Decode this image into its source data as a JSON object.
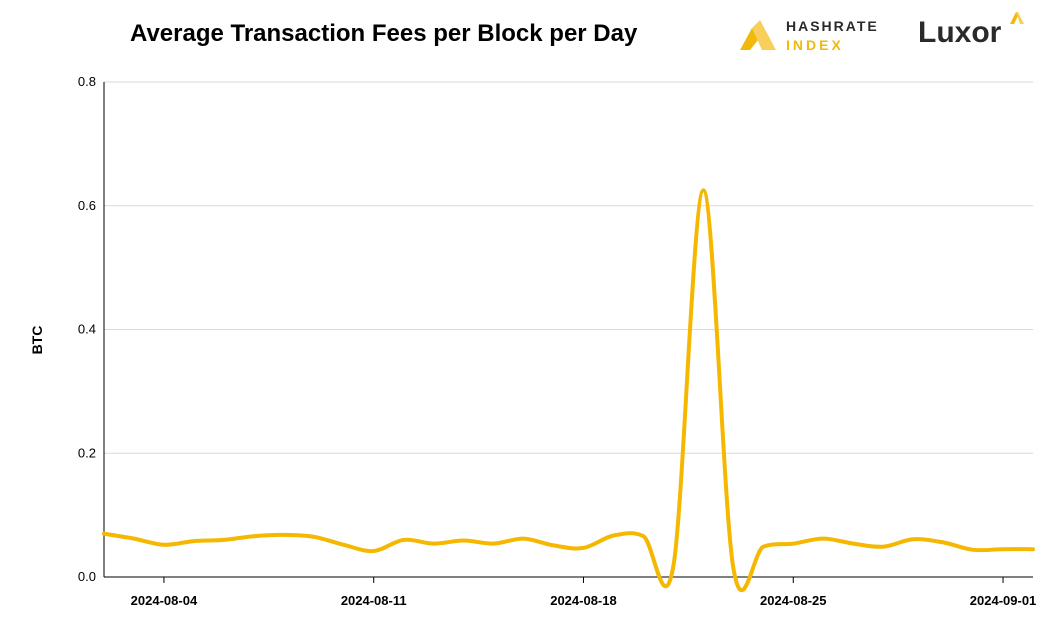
{
  "header": {
    "title": "Average Transaction Fees per Block per Day"
  },
  "logos": {
    "hashrate_line1": "HASHRATE",
    "hashrate_line2": "INDEX",
    "luxor": "Luxor"
  },
  "colors": {
    "line": "#f5b700",
    "grid": "#d9d9d9",
    "axis": "#000000",
    "brand_gold": "#f0b90b"
  },
  "chart_data": {
    "type": "line",
    "title": "Average Transaction Fees per Block per Day",
    "xlabel": "",
    "ylabel": "BTC",
    "ylim": [
      0,
      0.8
    ],
    "yticks": [
      "0.0",
      "0.2",
      "0.4",
      "0.6",
      "0.8"
    ],
    "xticks": [
      "2024-08-04",
      "2024-08-11",
      "2024-08-18",
      "2024-08-25",
      "2024-09-01"
    ],
    "xlim": [
      "2024-08-02",
      "2024-09-02"
    ],
    "grid": true,
    "series": [
      {
        "x": [
          "2024-08-02",
          "2024-08-03",
          "2024-08-04",
          "2024-08-05",
          "2024-08-06",
          "2024-08-07",
          "2024-08-08",
          "2024-08-09",
          "2024-08-10",
          "2024-08-11",
          "2024-08-12",
          "2024-08-13",
          "2024-08-14",
          "2024-08-15",
          "2024-08-16",
          "2024-08-17",
          "2024-08-18",
          "2024-08-19",
          "2024-08-20",
          "2024-08-21",
          "2024-08-22",
          "2024-08-23",
          "2024-08-24",
          "2024-08-25",
          "2024-08-26",
          "2024-08-27",
          "2024-08-28",
          "2024-08-29",
          "2024-08-30",
          "2024-08-31",
          "2024-09-01",
          "2024-09-02"
        ],
        "values": [
          0.07,
          0.062,
          0.052,
          0.058,
          0.06,
          0.066,
          0.068,
          0.065,
          0.052,
          0.042,
          0.06,
          0.054,
          0.059,
          0.054,
          0.062,
          0.051,
          0.047,
          0.067,
          0.066,
          0.018,
          0.625,
          0.015,
          0.049,
          0.054,
          0.062,
          0.054,
          0.049,
          0.061,
          0.056,
          0.044,
          0.045,
          0.045
        ]
      }
    ]
  }
}
